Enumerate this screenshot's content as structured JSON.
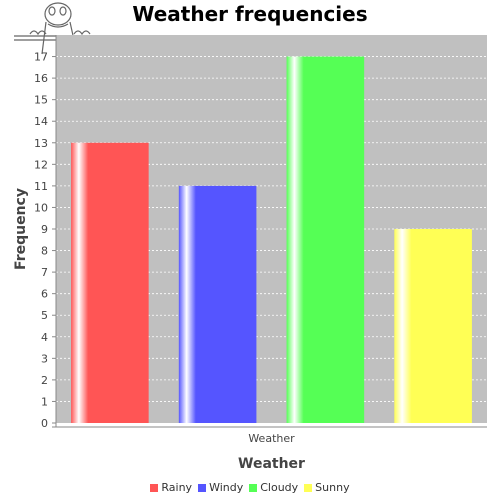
{
  "chart_data": {
    "type": "bar",
    "title": "Weather frequencies",
    "xlabel": "Weather",
    "ylabel": "Frequency",
    "categories": [
      "Weather"
    ],
    "series": [
      {
        "name": "Rainy",
        "values": [
          13
        ],
        "color": "#ff5555"
      },
      {
        "name": "Windy",
        "values": [
          11
        ],
        "color": "#5555ff"
      },
      {
        "name": "Cloudy",
        "values": [
          17
        ],
        "color": "#55ff55"
      },
      {
        "name": "Sunny",
        "values": [
          9
        ],
        "color": "#ffff55"
      }
    ],
    "ylim": [
      0,
      18
    ],
    "yticks": [
      0,
      1,
      2,
      3,
      4,
      5,
      6,
      7,
      8,
      9,
      10,
      11,
      12,
      13,
      14,
      15,
      16,
      17
    ],
    "grid": true,
    "legend_position": "bottom",
    "plot_background": "#c0c0c0"
  }
}
